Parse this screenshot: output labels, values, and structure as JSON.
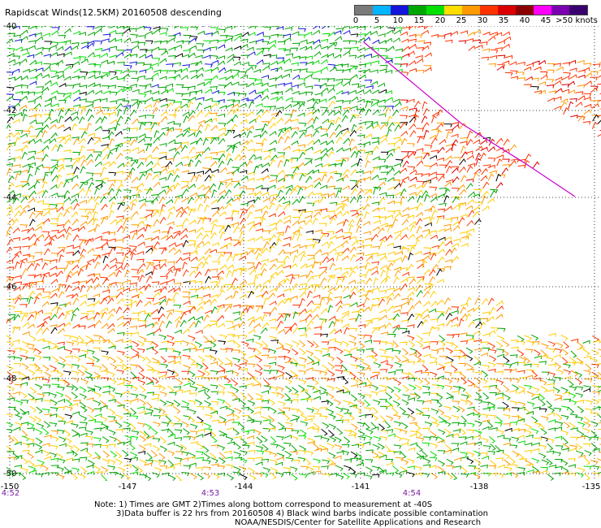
{
  "title": "Rapidscat Winds(12.5KM) 20160508 descending",
  "colorbar": {
    "labels": [
      "0",
      "5",
      "10",
      "15",
      "20",
      "25",
      "30",
      "35",
      "40",
      "45",
      ">50 knots"
    ],
    "colors": [
      "#7a7a7a",
      "#00b4ff",
      "#1414dc",
      "#00a600",
      "#00e000",
      "#ffdd00",
      "#ff9900",
      "#ff3300",
      "#dd0000",
      "#8b0000",
      "#ff00ff",
      "#7a00b0",
      "#3a0070"
    ]
  },
  "axes": {
    "lat_labels": [
      "-40",
      "-42",
      "-44",
      "-46",
      "-48",
      "-50"
    ],
    "lon_labels": [
      "-150",
      "-147",
      "-144",
      "-141",
      "-138",
      "-135"
    ]
  },
  "times": [
    "4:52",
    "4:53",
    "4:54"
  ],
  "notes": {
    "line1": "Note: 1) Times are GMT 2)Times along bottom correspond to measurement at -40S",
    "line2": "3)Data buffer is 22 hrs from 20160508 4) Black wind barbs indicate possible contamination",
    "line3": "NOAA/NESDIS/Center for Satellite Applications and Research"
  }
}
